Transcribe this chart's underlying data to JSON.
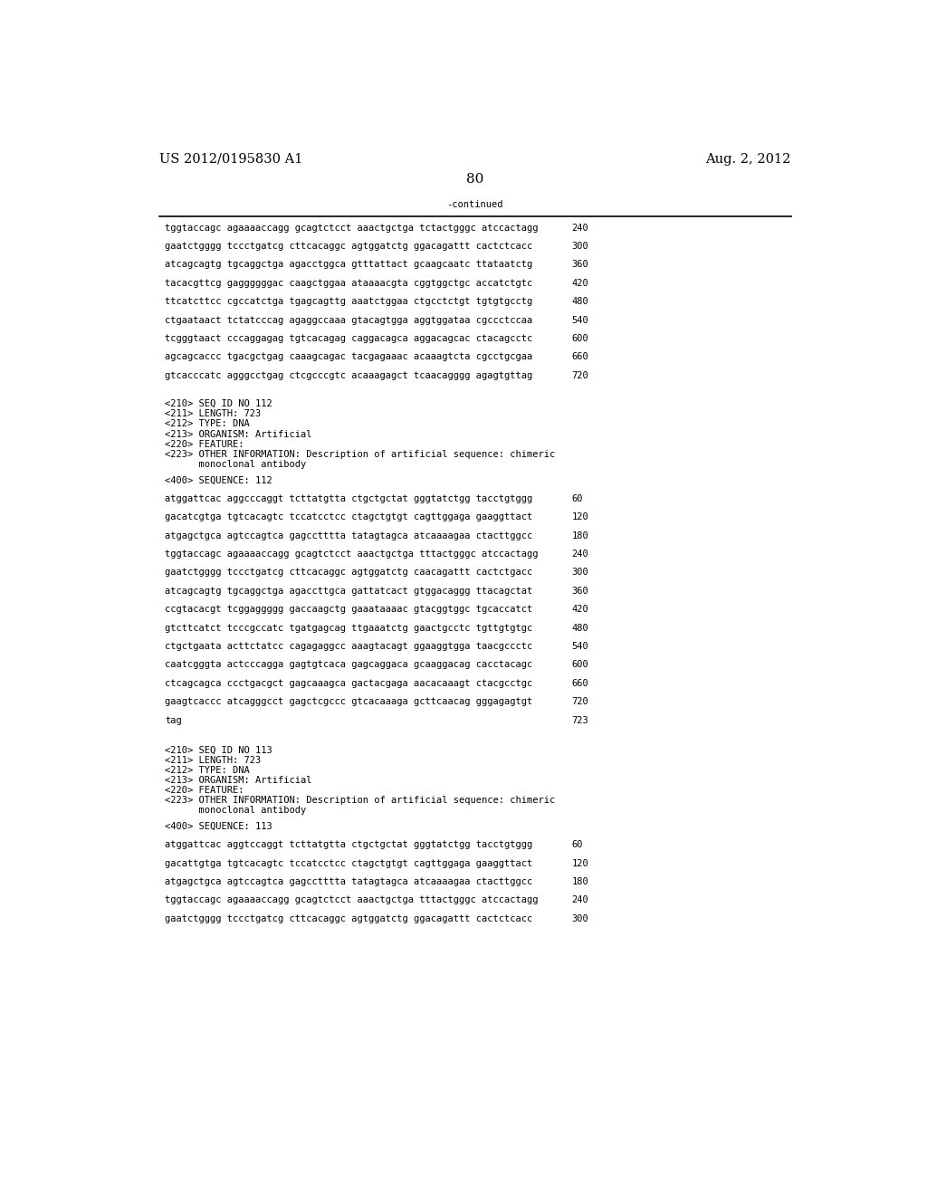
{
  "header_left": "US 2012/0195830 A1",
  "header_right": "Aug. 2, 2012",
  "page_number": "80",
  "continued_label": "-continued",
  "background_color": "#ffffff",
  "text_color": "#000000",
  "continued_section": [
    {
      "seq": "tggtaccagc agaaaaccagg gcagtctcct aaactgctga tctactgggc atccactagg",
      "num": "240"
    },
    {
      "seq": "gaatctgggg tccctgatcg cttcacaggc agtggatctg ggacagattt cactctcacc",
      "num": "300"
    },
    {
      "seq": "atcagcagtg tgcaggctga agacctggca gtttattact gcaagcaatc ttataatctg",
      "num": "360"
    },
    {
      "seq": "tacacgttcg gaggggggac caagctggaa ataaaacgta cggtggctgc accatctgtc",
      "num": "420"
    },
    {
      "seq": "ttcatcttcc cgccatctga tgagcagttg aaatctggaa ctgcctctgt tgtgtgcctg",
      "num": "480"
    },
    {
      "seq": "ctgaataact tctatcccag agaggccaaa gtacagtgga aggtggataa cgccctccaa",
      "num": "540"
    },
    {
      "seq": "tcgggtaact cccaggagag tgtcacagag caggacagca aggacagcac ctacagcctc",
      "num": "600"
    },
    {
      "seq": "agcagcaccc tgacgctgag caaagcagac tacgagaaac acaaagtcta cgcctgcgaa",
      "num": "660"
    },
    {
      "seq": "gtcacccatc agggcctgag ctcgcccgtc acaaagagct tcaacagggg agagtgttag",
      "num": "720"
    }
  ],
  "seq112_meta": [
    "<210> SEQ ID NO 112",
    "<211> LENGTH: 723",
    "<212> TYPE: DNA",
    "<213> ORGANISM: Artificial",
    "<220> FEATURE:",
    "<223> OTHER INFORMATION: Description of artificial sequence: chimeric",
    "      monoclonal antibody"
  ],
  "seq112_label": "<400> SEQUENCE: 112",
  "seq112_data": [
    {
      "seq": "atggattcac aggcccaggt tcttatgtta ctgctgctat gggtatctgg tacctgtggg",
      "num": "60"
    },
    {
      "seq": "gacatcgtga tgtcacagtc tccatcctcc ctagctgtgt cagttggaga gaaggttact",
      "num": "120"
    },
    {
      "seq": "atgagctgca agtccagtca gagcctttta tatagtagca atcaaaagaa ctacttggcc",
      "num": "180"
    },
    {
      "seq": "tggtaccagc agaaaaccagg gcagtctcct aaactgctga tttactgggc atccactagg",
      "num": "240"
    },
    {
      "seq": "gaatctgggg tccctgatcg cttcacaggc agtggatctg caacagattt cactctgacc",
      "num": "300"
    },
    {
      "seq": "atcagcagtg tgcaggctga agaccttgca gattatcact gtggacaggg ttacagctat",
      "num": "360"
    },
    {
      "seq": "ccgtacacgt tcggaggggg gaccaagctg gaaataaaac gtacggtggc tgcaccatct",
      "num": "420"
    },
    {
      "seq": "gtcttcatct tcccgccatc tgatgagcag ttgaaatctg gaactgcctc tgttgtgtgc",
      "num": "480"
    },
    {
      "seq": "ctgctgaata acttctatcc cagagaggcc aaagtacagt ggaaggtgga taacgccctc",
      "num": "540"
    },
    {
      "seq": "caatcgggta actcccagga gagtgtcaca gagcaggaca gcaaggacag cacctacagc",
      "num": "600"
    },
    {
      "seq": "ctcagcagca ccctgacgct gagcaaagca gactacgaga aacacaaagt ctacgcctgc",
      "num": "660"
    },
    {
      "seq": "gaagtcaccc atcagggcct gagctcgccc gtcacaaaga gcttcaacag gggagagtgt",
      "num": "720"
    },
    {
      "seq": "tag",
      "num": "723"
    }
  ],
  "seq113_meta": [
    "<210> SEQ ID NO 113",
    "<211> LENGTH: 723",
    "<212> TYPE: DNA",
    "<213> ORGANISM: Artificial",
    "<220> FEATURE:",
    "<223> OTHER INFORMATION: Description of artificial sequence: chimeric",
    "      monoclonal antibody"
  ],
  "seq113_label": "<400> SEQUENCE: 113",
  "seq113_data": [
    {
      "seq": "atggattcac aggtccaggt tcttatgtta ctgctgctat gggtatctgg tacctgtggg",
      "num": "60"
    },
    {
      "seq": "gacattgtga tgtcacagtc tccatcctcc ctagctgtgt cagttggaga gaaggttact",
      "num": "120"
    },
    {
      "seq": "atgagctgca agtccagtca gagcctttta tatagtagca atcaaaagaa ctacttggcc",
      "num": "180"
    },
    {
      "seq": "tggtaccagc agaaaaccagg gcagtctcct aaactgctga tttactgggc atccactagg",
      "num": "240"
    },
    {
      "seq": "gaatctgggg tccctgatcg cttcacaggc agtggatctg ggacagattt cactctcacc",
      "num": "300"
    }
  ]
}
